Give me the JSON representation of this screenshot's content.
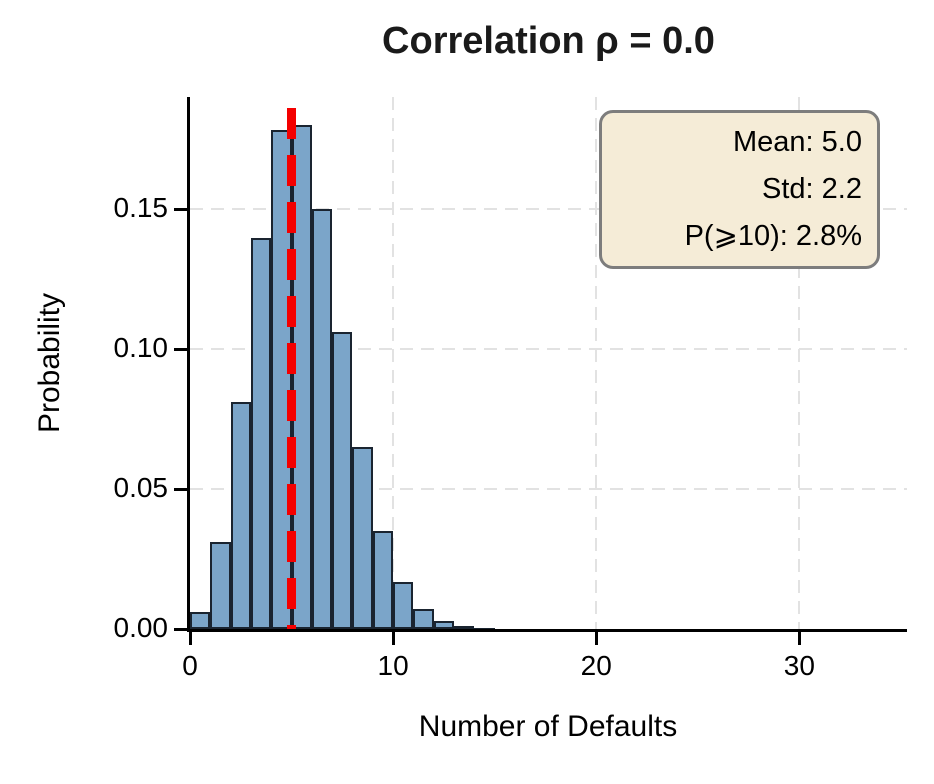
{
  "chart_data": {
    "type": "bar",
    "subtype": "histogram",
    "title": "Correlation ρ = 0.0",
    "xlabel": "Number of Defaults",
    "ylabel": "Probability",
    "x": [
      0,
      1,
      2,
      3,
      4,
      5,
      6,
      7,
      8,
      9,
      10,
      11,
      12,
      13,
      14
    ],
    "values": [
      0.006,
      0.0312,
      0.0812,
      0.1396,
      0.1781,
      0.18,
      0.15,
      0.106,
      0.0649,
      0.0349,
      0.0167,
      0.0072,
      0.0028,
      0.001,
      0.0003
    ],
    "bin_width": 1,
    "mean_line_x": 5.0,
    "xlim": [
      0,
      35.3
    ],
    "ylim": [
      0,
      0.19
    ],
    "xticks": [
      0,
      10,
      20,
      30
    ],
    "xtick_labels": [
      "0",
      "10",
      "20",
      "30"
    ],
    "yticks": [
      0,
      0.05,
      0.1,
      0.15
    ],
    "ytick_labels": [
      "0.00",
      "0.05",
      "0.10",
      "0.15"
    ],
    "grid": true,
    "grid_style": "dashed",
    "legend_position": "none",
    "annotation": {
      "position": "top-right",
      "align": "right",
      "lines": [
        "Mean: 5.0",
        "Std: 2.2",
        "P(⩾10): 2.8%"
      ],
      "bg_color": "#f5ecd7",
      "border_color": "#7d7d7d"
    },
    "stats": {
      "mean": 5.0,
      "std": 2.2,
      "p_ge_10_percent": 2.8
    },
    "colors": {
      "bar_fill": "#7ba5c9",
      "bar_edge": "#1a2430",
      "mean_line": "#f40000",
      "grid": "#e2e2e2",
      "axis": "#000000",
      "text": "#000000"
    }
  }
}
